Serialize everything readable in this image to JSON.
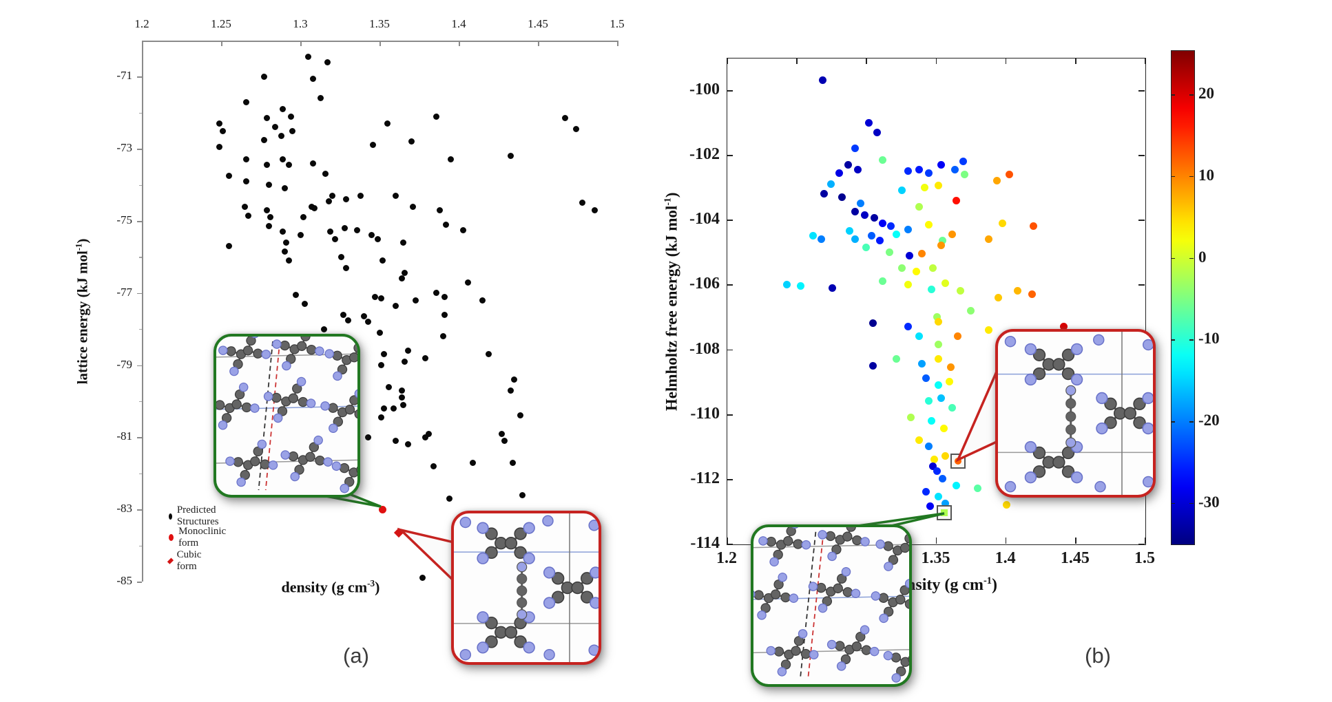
{
  "figure": {
    "panel_a_label": "(a)",
    "panel_b_label": "(b)",
    "accent_green": "#217821",
    "accent_red": "#c62320"
  },
  "plot_a": {
    "xlabel_base": "density (g cm",
    "xlabel_exp": "-3",
    "xlabel_close": ")",
    "ylabel_base": "lattice energy (kJ mol",
    "ylabel_exp": "-1",
    "ylabel_close": ")",
    "legend": [
      {
        "label": "Predicted Structures",
        "marker": "black-dot"
      },
      {
        "label": "Monoclinic form",
        "marker": "red-dot"
      },
      {
        "label": "Cubic form",
        "marker": "red-diamond"
      }
    ]
  },
  "plot_b": {
    "xlabel_base": "density (g cm",
    "xlabel_exp": "-1",
    "xlabel_close": ")",
    "ylabel_base": "Helmholtz free energy (kJ mol",
    "ylabel_exp": "-1",
    "ylabel_close": ")"
  },
  "colorbar": {
    "ticks": [
      "20",
      "10",
      "0",
      "-10",
      "-20",
      "-30"
    ],
    "vmin": -35,
    "vmax": 25.4
  },
  "chart_data": [
    {
      "type": "scatter",
      "title": "",
      "xlabel": "density (g cm-3)",
      "ylabel": "lattice energy (kJ mol-1)",
      "xlim": [
        1.2,
        1.5
      ],
      "ylim": [
        -85,
        -70
      ],
      "x_ticks": [
        "1.2",
        "1.25",
        "1.3",
        "1.35",
        "1.4",
        "1.45",
        "1.5"
      ],
      "y_ticks": [
        "-71",
        "-73",
        "-75",
        "-77",
        "-79",
        "-81",
        "-83",
        "-85"
      ],
      "grid": false,
      "series_name": "Predicted Structures",
      "points": [
        [
          1.305,
          -70.45
        ],
        [
          1.317,
          -70.6
        ],
        [
          1.277,
          -71.0
        ],
        [
          1.308,
          -71.05
        ],
        [
          1.313,
          -71.6
        ],
        [
          1.266,
          -71.7
        ],
        [
          1.289,
          -71.9
        ],
        [
          1.294,
          -72.1
        ],
        [
          1.279,
          -72.15
        ],
        [
          1.249,
          -72.3
        ],
        [
          1.251,
          -72.5
        ],
        [
          1.284,
          -72.4
        ],
        [
          1.288,
          -72.65
        ],
        [
          1.295,
          -72.5
        ],
        [
          1.249,
          -72.95
        ],
        [
          1.277,
          -72.75
        ],
        [
          1.355,
          -72.3
        ],
        [
          1.386,
          -72.1
        ],
        [
          1.346,
          -72.9
        ],
        [
          1.37,
          -72.8
        ],
        [
          1.395,
          -73.3
        ],
        [
          1.433,
          -73.2
        ],
        [
          1.467,
          -72.15
        ],
        [
          1.474,
          -72.45
        ],
        [
          1.266,
          -73.3
        ],
        [
          1.279,
          -73.45
        ],
        [
          1.289,
          -73.3
        ],
        [
          1.293,
          -73.45
        ],
        [
          1.308,
          -73.4
        ],
        [
          1.316,
          -73.7
        ],
        [
          1.255,
          -73.75
        ],
        [
          1.266,
          -73.9
        ],
        [
          1.28,
          -74.0
        ],
        [
          1.29,
          -74.1
        ],
        [
          1.32,
          -74.3
        ],
        [
          1.329,
          -74.4
        ],
        [
          1.338,
          -74.3
        ],
        [
          1.36,
          -74.3
        ],
        [
          1.388,
          -74.7
        ],
        [
          1.371,
          -74.6
        ],
        [
          1.392,
          -75.1
        ],
        [
          1.403,
          -75.25
        ],
        [
          1.478,
          -74.5
        ],
        [
          1.486,
          -74.7
        ],
        [
          1.265,
          -74.6
        ],
        [
          1.267,
          -74.85
        ],
        [
          1.279,
          -74.7
        ],
        [
          1.281,
          -74.9
        ],
        [
          1.28,
          -75.15
        ],
        [
          1.302,
          -74.9
        ],
        [
          1.307,
          -74.6
        ],
        [
          1.309,
          -74.65
        ],
        [
          1.318,
          -74.45
        ],
        [
          1.289,
          -75.3
        ],
        [
          1.291,
          -75.6
        ],
        [
          1.3,
          -75.4
        ],
        [
          1.319,
          -75.3
        ],
        [
          1.322,
          -75.5
        ],
        [
          1.328,
          -75.2
        ],
        [
          1.336,
          -75.25
        ],
        [
          1.345,
          -75.4
        ],
        [
          1.349,
          -75.5
        ],
        [
          1.365,
          -75.6
        ],
        [
          1.255,
          -75.7
        ],
        [
          1.293,
          -76.1
        ],
        [
          1.29,
          -75.85
        ],
        [
          1.326,
          -76.0
        ],
        [
          1.352,
          -76.1
        ],
        [
          1.366,
          -76.45
        ],
        [
          1.364,
          -76.6
        ],
        [
          1.329,
          -76.3
        ],
        [
          1.406,
          -76.7
        ],
        [
          1.297,
          -77.05
        ],
        [
          1.303,
          -77.3
        ],
        [
          1.347,
          -77.1
        ],
        [
          1.351,
          -77.15
        ],
        [
          1.36,
          -77.35
        ],
        [
          1.373,
          -77.2
        ],
        [
          1.386,
          -77.0
        ],
        [
          1.391,
          -77.1
        ],
        [
          1.415,
          -77.2
        ],
        [
          1.391,
          -77.6
        ],
        [
          1.327,
          -77.6
        ],
        [
          1.33,
          -77.75
        ],
        [
          1.315,
          -78.0
        ],
        [
          1.321,
          -78.25
        ],
        [
          1.317,
          -78.4
        ],
        [
          1.331,
          -78.3
        ],
        [
          1.34,
          -77.65
        ],
        [
          1.343,
          -77.8
        ],
        [
          1.35,
          -78.1
        ],
        [
          1.353,
          -78.7
        ],
        [
          1.351,
          -79.0
        ],
        [
          1.366,
          -78.9
        ],
        [
          1.368,
          -78.6
        ],
        [
          1.379,
          -78.8
        ],
        [
          1.39,
          -78.2
        ],
        [
          1.419,
          -78.7
        ],
        [
          1.435,
          -79.4
        ],
        [
          1.433,
          -79.7
        ],
        [
          1.356,
          -79.6
        ],
        [
          1.364,
          -79.7
        ],
        [
          1.364,
          -79.9
        ],
        [
          1.365,
          -80.1
        ],
        [
          1.353,
          -80.2
        ],
        [
          1.359,
          -80.2
        ],
        [
          1.351,
          -80.45
        ],
        [
          1.343,
          -81.0
        ],
        [
          1.36,
          -81.1
        ],
        [
          1.379,
          -81.0
        ],
        [
          1.381,
          -80.9
        ],
        [
          1.368,
          -81.2
        ],
        [
          1.439,
          -80.4
        ],
        [
          1.427,
          -80.9
        ],
        [
          1.429,
          -81.1
        ],
        [
          1.409,
          -81.7
        ],
        [
          1.434,
          -81.7
        ],
        [
          1.384,
          -81.8
        ],
        [
          1.394,
          -82.7
        ],
        [
          1.44,
          -82.6
        ],
        [
          1.377,
          -84.9
        ]
      ],
      "special_points": [
        {
          "x": 1.352,
          "y": -83.0,
          "series": "Monoclinic form",
          "marker": "red-dot"
        },
        {
          "x": 1.362,
          "y": -83.65,
          "series": "Cubic form",
          "marker": "red-diamond"
        }
      ]
    },
    {
      "type": "scatter",
      "title": "",
      "xlabel": "density (g cm-1)",
      "ylabel": "Helmholtz free energy (kJ mol-1)",
      "xlim": [
        1.2,
        1.5
      ],
      "ylim": [
        -114,
        -99
      ],
      "x_ticks": [
        "1.2",
        "1.25",
        "1.3",
        "1.35",
        "1.4",
        "1.45",
        "1.5"
      ],
      "y_ticks": [
        "-100",
        "-102",
        "-104",
        "-106",
        "-108",
        "-110",
        "-112",
        "-114"
      ],
      "grid": false,
      "colormap": "jet",
      "color_range": [
        -35,
        25.4
      ],
      "points": [
        [
          1.269,
          -99.7,
          -32
        ],
        [
          1.302,
          -101.0,
          -30
        ],
        [
          1.308,
          -101.3,
          -31
        ],
        [
          1.292,
          -101.8,
          -24
        ],
        [
          1.287,
          -102.3,
          -33
        ],
        [
          1.294,
          -102.45,
          -31
        ],
        [
          1.281,
          -102.55,
          -29
        ],
        [
          1.312,
          -102.15,
          -6
        ],
        [
          1.33,
          -102.5,
          -25
        ],
        [
          1.338,
          -102.45,
          -26
        ],
        [
          1.345,
          -102.55,
          -24
        ],
        [
          1.354,
          -102.3,
          -28
        ],
        [
          1.364,
          -102.45,
          -22
        ],
        [
          1.37,
          -102.2,
          -24
        ],
        [
          1.371,
          -102.6,
          -5
        ],
        [
          1.403,
          -102.6,
          13
        ],
        [
          1.394,
          -102.8,
          8
        ],
        [
          1.275,
          -102.9,
          -17
        ],
        [
          1.27,
          -103.2,
          -33
        ],
        [
          1.283,
          -103.3,
          -34
        ],
        [
          1.296,
          -103.5,
          -20
        ],
        [
          1.326,
          -103.1,
          -15
        ],
        [
          1.342,
          -103.0,
          2
        ],
        [
          1.352,
          -102.95,
          4
        ],
        [
          1.338,
          -103.6,
          -2
        ],
        [
          1.365,
          -103.4,
          17
        ],
        [
          1.292,
          -103.75,
          -33
        ],
        [
          1.299,
          -103.85,
          -31
        ],
        [
          1.306,
          -103.95,
          -33
        ],
        [
          1.312,
          -104.1,
          -28
        ],
        [
          1.318,
          -104.2,
          -25
        ],
        [
          1.288,
          -104.35,
          -15
        ],
        [
          1.292,
          -104.6,
          -17
        ],
        [
          1.304,
          -104.5,
          -22
        ],
        [
          1.31,
          -104.65,
          -26
        ],
        [
          1.322,
          -104.45,
          -12
        ],
        [
          1.3,
          -104.85,
          -8
        ],
        [
          1.268,
          -104.6,
          -20
        ],
        [
          1.262,
          -104.5,
          -14
        ],
        [
          1.33,
          -104.3,
          -20
        ],
        [
          1.345,
          -104.15,
          3
        ],
        [
          1.398,
          -104.1,
          5
        ],
        [
          1.362,
          -104.45,
          9
        ],
        [
          1.388,
          -104.6,
          8
        ],
        [
          1.355,
          -104.65,
          -6
        ],
        [
          1.354,
          -104.8,
          9
        ],
        [
          1.42,
          -104.2,
          13
        ],
        [
          1.317,
          -105.0,
          -5
        ],
        [
          1.331,
          -105.1,
          -30
        ],
        [
          1.34,
          -105.05,
          10
        ],
        [
          1.326,
          -105.5,
          -4
        ],
        [
          1.336,
          -105.6,
          3
        ],
        [
          1.348,
          -105.5,
          -1
        ],
        [
          1.243,
          -106.0,
          -15
        ],
        [
          1.253,
          -106.05,
          -13
        ],
        [
          1.276,
          -106.1,
          -32
        ],
        [
          1.312,
          -105.9,
          -6
        ],
        [
          1.33,
          -106.0,
          2
        ],
        [
          1.347,
          -106.15,
          -10
        ],
        [
          1.357,
          -105.95,
          1
        ],
        [
          1.368,
          -106.2,
          -1
        ],
        [
          1.395,
          -106.4,
          6
        ],
        [
          1.409,
          -106.2,
          7
        ],
        [
          1.419,
          -106.3,
          12
        ],
        [
          1.375,
          -106.8,
          -4
        ],
        [
          1.351,
          -107.0,
          -3
        ],
        [
          1.442,
          -107.3,
          20
        ],
        [
          1.388,
          -107.4,
          4
        ],
        [
          1.305,
          -107.2,
          -34
        ],
        [
          1.33,
          -107.3,
          -25
        ],
        [
          1.352,
          -107.15,
          5
        ],
        [
          1.338,
          -107.6,
          -14
        ],
        [
          1.352,
          -107.85,
          -3
        ],
        [
          1.366,
          -107.6,
          10
        ],
        [
          1.402,
          -107.9,
          12
        ],
        [
          1.322,
          -108.3,
          -6
        ],
        [
          1.34,
          -108.45,
          -18
        ],
        [
          1.352,
          -108.3,
          4
        ],
        [
          1.361,
          -108.55,
          9
        ],
        [
          1.305,
          -108.5,
          -33
        ],
        [
          1.343,
          -108.9,
          -22
        ],
        [
          1.352,
          -109.1,
          -12
        ],
        [
          1.36,
          -109.0,
          3
        ],
        [
          1.345,
          -109.6,
          -10
        ],
        [
          1.354,
          -109.5,
          -16
        ],
        [
          1.362,
          -109.8,
          -8
        ],
        [
          1.332,
          -110.1,
          -2
        ],
        [
          1.347,
          -110.2,
          -12
        ],
        [
          1.356,
          -110.45,
          3
        ],
        [
          1.338,
          -110.8,
          4
        ],
        [
          1.345,
          -111.0,
          -20
        ],
        [
          1.349,
          -111.4,
          4
        ],
        [
          1.357,
          -111.3,
          5
        ],
        [
          1.348,
          -111.6,
          -30
        ],
        [
          1.351,
          -111.75,
          -25
        ],
        [
          1.355,
          -112.0,
          -22
        ],
        [
          1.365,
          -112.2,
          -13
        ],
        [
          1.38,
          -112.3,
          -7
        ],
        [
          1.401,
          -112.8,
          5
        ],
        [
          1.343,
          -112.4,
          -25
        ],
        [
          1.352,
          -112.55,
          -14
        ],
        [
          1.357,
          -112.75,
          -18
        ],
        [
          1.346,
          -112.85,
          -28
        ]
      ],
      "highlighted_points": [
        {
          "x": 1.365,
          "y": -111.4,
          "marker": "orange-square",
          "color_value": 12
        },
        {
          "x": 1.355,
          "y": -113.0,
          "marker": "green-square",
          "color_value": -2
        }
      ]
    }
  ]
}
